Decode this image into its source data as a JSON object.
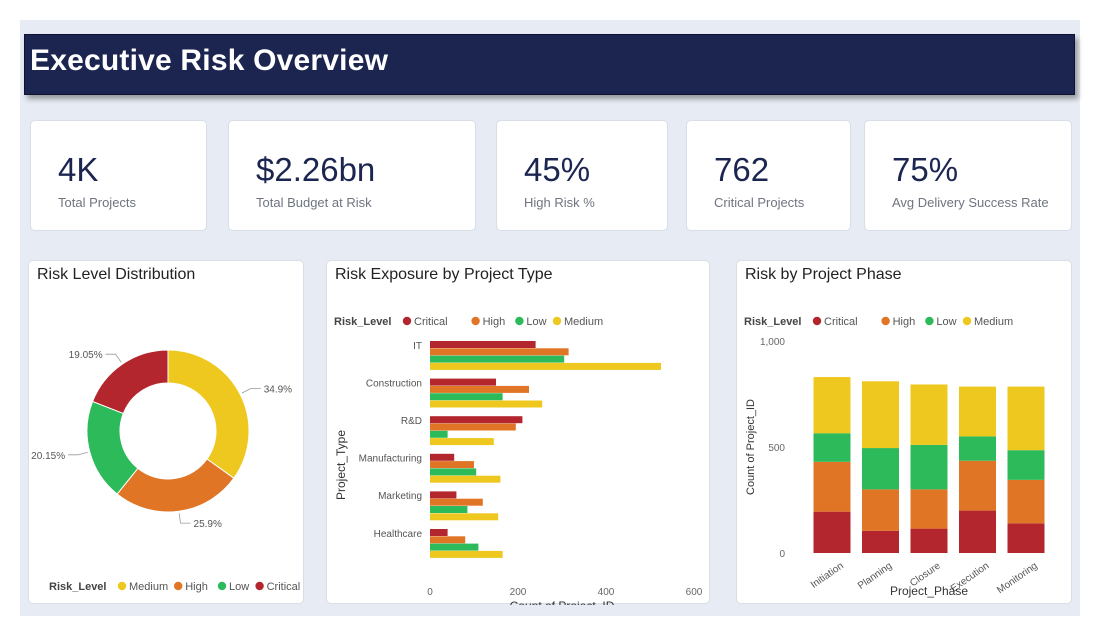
{
  "header": {
    "title": "Executive Risk Overview"
  },
  "kpis": [
    {
      "value": "4K",
      "label": "Total Projects"
    },
    {
      "value": "$2.26bn",
      "label": "Total Budget at Risk"
    },
    {
      "value": "45%",
      "label": "High Risk %"
    },
    {
      "value": "762",
      "label": "Critical Projects"
    },
    {
      "value": "75%",
      "label": "Avg Delivery Success Rate"
    }
  ],
  "colors": {
    "Critical": "#b3262d",
    "High": "#e07526",
    "Low": "#2dba5a",
    "Medium": "#eec81f"
  },
  "chart_data": [
    {
      "type": "pie",
      "title": "Risk Level Distribution",
      "legend_title": "Risk_Level",
      "legend_position": "bottom",
      "slices": [
        {
          "label": "Medium",
          "value": 34.9,
          "display": "34.9%"
        },
        {
          "label": "High",
          "value": 25.9,
          "display": "25.9%"
        },
        {
          "label": "Low",
          "value": 20.15,
          "display": "20.15%"
        },
        {
          "label": "Critical",
          "value": 19.05,
          "display": "19.05%"
        }
      ]
    },
    {
      "type": "bar",
      "orientation": "horizontal",
      "title": "Risk Exposure by Project Type",
      "legend_title": "Risk_Level",
      "legend_position": "top-left",
      "xlabel": "Count of Project_ID",
      "ylabel": "Project_Type",
      "xlim": [
        0,
        600
      ],
      "xticks": [
        "0",
        "200",
        "400",
        "600"
      ],
      "categories": [
        "IT",
        "Construction",
        "R&D",
        "Manufacturing",
        "Marketing",
        "Healthcare"
      ],
      "series": [
        {
          "name": "Critical",
          "values": [
            240,
            150,
            210,
            55,
            60,
            40
          ]
        },
        {
          "name": "High",
          "values": [
            315,
            225,
            195,
            100,
            120,
            80
          ]
        },
        {
          "name": "Low",
          "values": [
            305,
            165,
            40,
            105,
            85,
            110
          ]
        },
        {
          "name": "Medium",
          "values": [
            525,
            255,
            145,
            160,
            155,
            165
          ]
        }
      ]
    },
    {
      "type": "bar",
      "orientation": "vertical",
      "stacked": true,
      "title": "Risk by Project Phase",
      "legend_title": "Risk_Level",
      "legend_position": "top-left",
      "xlabel": "Project_Phase",
      "ylabel": "Count of Project_ID",
      "ylim": [
        0,
        1000
      ],
      "yticks": [
        "0",
        "500",
        "1,000"
      ],
      "categories": [
        "Initiation",
        "Planning",
        "Closure",
        "Execution",
        "Monitoring"
      ],
      "series": [
        {
          "name": "Critical",
          "values": [
            195,
            105,
            115,
            200,
            140
          ]
        },
        {
          "name": "High",
          "values": [
            235,
            195,
            185,
            235,
            205
          ]
        },
        {
          "name": "Low",
          "values": [
            135,
            195,
            210,
            115,
            140
          ]
        },
        {
          "name": "Medium",
          "values": [
            265,
            315,
            285,
            235,
            300
          ]
        }
      ]
    }
  ]
}
